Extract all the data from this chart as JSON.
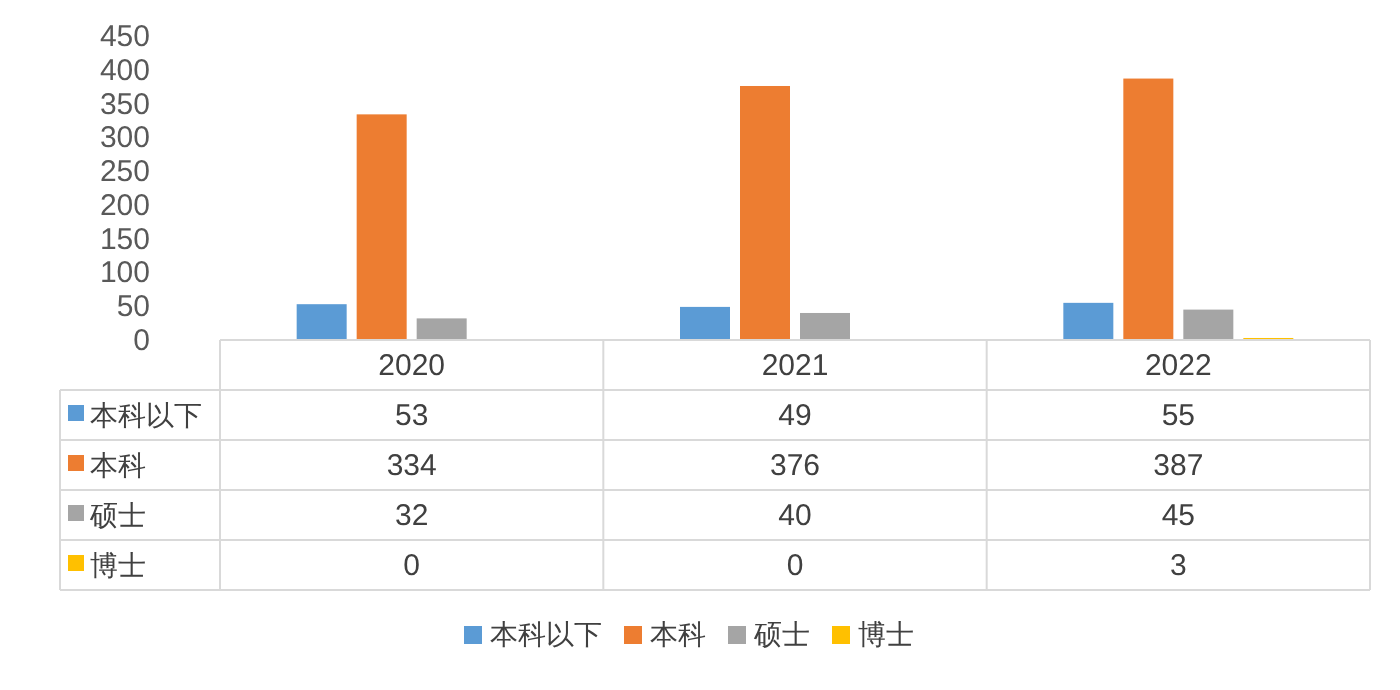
{
  "chart_data": {
    "type": "bar",
    "categories": [
      "2020",
      "2021",
      "2022"
    ],
    "series": [
      {
        "name": "本科以下",
        "color": "#5b9bd5",
        "values": [
          53,
          49,
          55
        ]
      },
      {
        "name": "本科",
        "color": "#ed7d31",
        "values": [
          334,
          376,
          387
        ]
      },
      {
        "name": "硕士",
        "color": "#a5a5a5",
        "values": [
          32,
          40,
          45
        ]
      },
      {
        "name": "博士",
        "color": "#ffc000",
        "values": [
          0,
          0,
          3
        ]
      }
    ],
    "ylim": [
      0,
      450
    ],
    "yticks": [
      0,
      50,
      100,
      150,
      200,
      250,
      300,
      350,
      400,
      450
    ],
    "grid": false,
    "legend": "bottom",
    "data_labels": true
  }
}
